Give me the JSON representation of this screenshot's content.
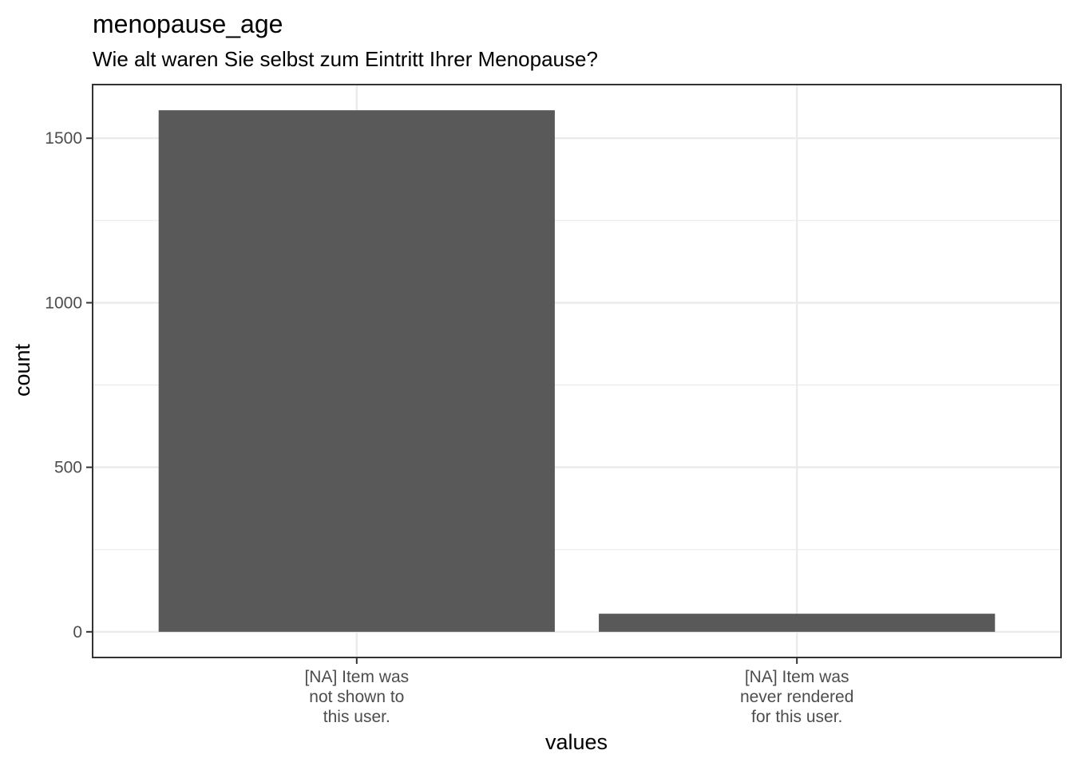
{
  "chart_data": {
    "type": "bar",
    "title": "menopause_age",
    "subtitle": "Wie alt waren Sie selbst zum Eintritt Ihrer Menopause?",
    "xlabel": "values",
    "ylabel": "count",
    "categories": [
      [
        "[NA] Item was",
        "not shown to",
        "this user."
      ],
      [
        "[NA] Item was",
        "never rendered",
        "for this user."
      ]
    ],
    "values": [
      1585,
      55
    ],
    "ylim": [
      -78,
      1663
    ],
    "yticks": [
      0,
      500,
      1000,
      1500
    ],
    "ytick_labels": [
      "0",
      "500",
      "1000",
      "1500"
    ],
    "grid": true,
    "bar_color": "#595959",
    "grid_color": "#ebebeb",
    "panel_border_color": "#333333"
  }
}
